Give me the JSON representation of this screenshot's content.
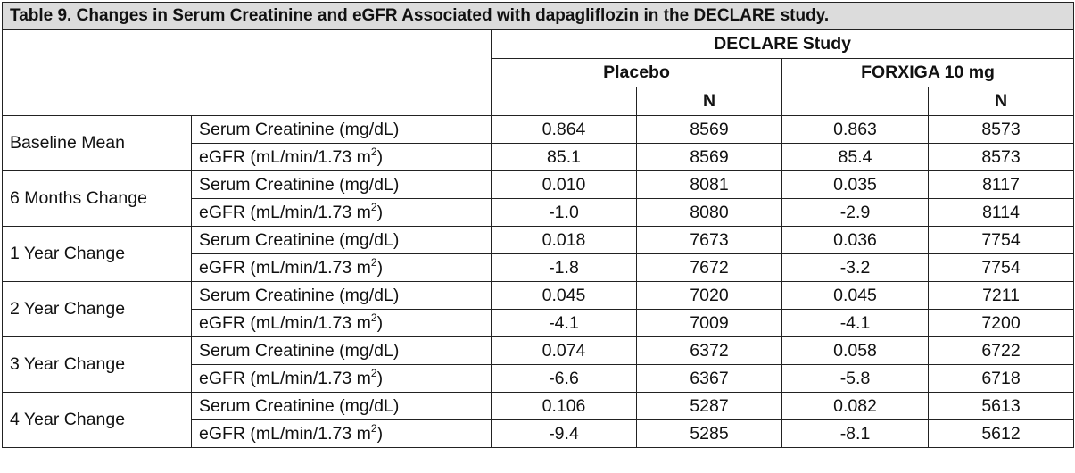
{
  "title": "Table 9. Changes in Serum Creatinine and eGFR Associated with dapagliflozin in the DECLARE study.",
  "header": {
    "study": "DECLARE Study",
    "placebo": "Placebo",
    "forxiga": "FORXIGA 10 mg",
    "n": "N"
  },
  "rows": [
    {
      "group": "Baseline Mean",
      "creat_label": "Serum Creatinine (mg/dL)",
      "creat": [
        "0.864",
        "8569",
        "0.863",
        "8573"
      ],
      "egfr_label": "eGFR (mL/min/1.73 m",
      "egfr_sup": "2",
      "egfr_close": ")",
      "egfr": [
        "85.1",
        "8569",
        "85.4",
        "8573"
      ]
    },
    {
      "group": "6 Months Change",
      "creat_label": "Serum Creatinine (mg/dL)",
      "creat": [
        "0.010",
        "8081",
        "0.035",
        "8117"
      ],
      "egfr_label": "eGFR (mL/min/1.73 m",
      "egfr_sup": "2",
      "egfr_close": ")",
      "egfr": [
        "-1.0",
        "8080",
        "-2.9",
        "8114"
      ]
    },
    {
      "group": "1 Year Change",
      "creat_label": "Serum Creatinine (mg/dL)",
      "creat": [
        "0.018",
        "7673",
        "0.036",
        "7754"
      ],
      "egfr_label": "eGFR (mL/min/1.73 m",
      "egfr_sup": "2",
      "egfr_close": ")",
      "egfr": [
        "-1.8",
        "7672",
        "-3.2",
        "7754"
      ]
    },
    {
      "group": "2 Year Change",
      "creat_label": "Serum Creatinine (mg/dL)",
      "creat": [
        "0.045",
        "7020",
        "0.045",
        "7211"
      ],
      "egfr_label": "eGFR (mL/min/1.73 m",
      "egfr_sup": "2",
      "egfr_close": ")",
      "egfr": [
        "-4.1",
        "7009",
        "-4.1",
        "7200"
      ]
    },
    {
      "group": "3 Year Change",
      "creat_label": "Serum Creatinine (mg/dL)",
      "creat": [
        "0.074",
        "6372",
        "0.058",
        "6722"
      ],
      "egfr_label": "eGFR (mL/min/1.73 m",
      "egfr_sup": "2",
      "egfr_close": ")",
      "egfr": [
        "-6.6",
        "6367",
        "-5.8",
        "6718"
      ]
    },
    {
      "group": "4 Year Change",
      "creat_label": "Serum Creatinine (mg/dL)",
      "creat": [
        "0.106",
        "5287",
        "0.082",
        "5613"
      ],
      "egfr_label": "eGFR (mL/min/1.73 m",
      "egfr_sup": "2",
      "egfr_close": ")",
      "egfr": [
        "-9.4",
        "5285",
        "-8.1",
        "5612"
      ]
    }
  ]
}
